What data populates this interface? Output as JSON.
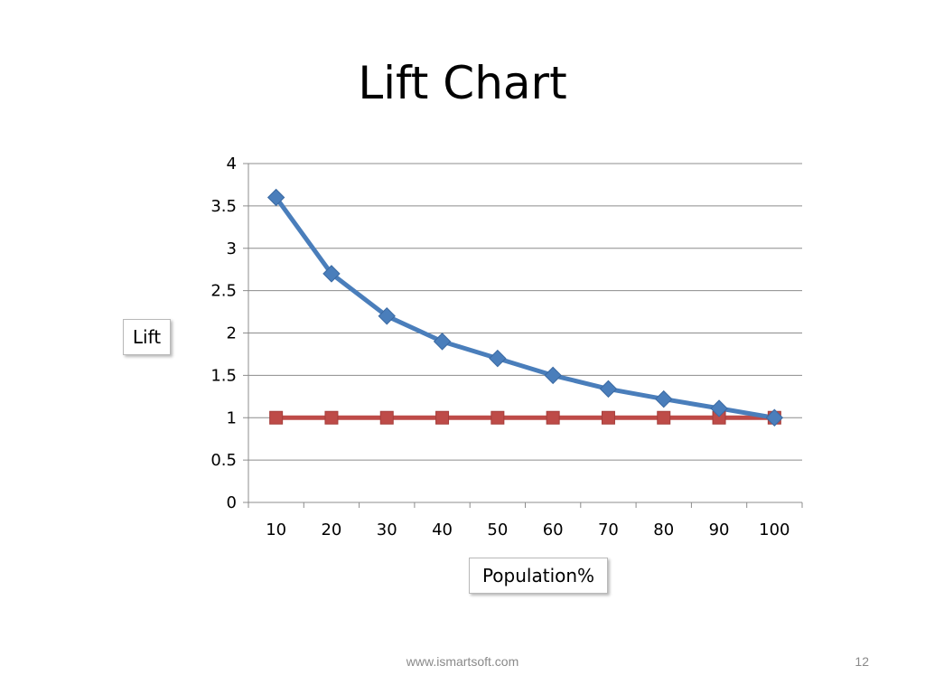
{
  "slide": {
    "title": "Lift Chart",
    "footer_url": "www.ismartsoft.com",
    "page_number": "12"
  },
  "chart_data": {
    "type": "line",
    "title": "Lift Chart",
    "xlabel": "Population%",
    "ylabel": "Lift",
    "categories": [
      "10",
      "20",
      "30",
      "40",
      "50",
      "60",
      "70",
      "80",
      "90",
      "100"
    ],
    "series": [
      {
        "values": [
          3.6,
          2.7,
          2.2,
          1.9,
          1.7,
          1.5,
          1.34,
          1.22,
          1.11,
          1.0
        ],
        "color": "#4a7ebb",
        "marker": "diamond"
      },
      {
        "values": [
          1,
          1,
          1,
          1,
          1,
          1,
          1,
          1,
          1,
          1
        ],
        "color": "#be4b48",
        "marker": "square"
      }
    ],
    "ylim": [
      0,
      4
    ],
    "yticks": [
      "0",
      "0.5",
      "1",
      "1.5",
      "2",
      "2.5",
      "3",
      "3.5",
      "4"
    ],
    "grid": true,
    "legend": "none"
  }
}
